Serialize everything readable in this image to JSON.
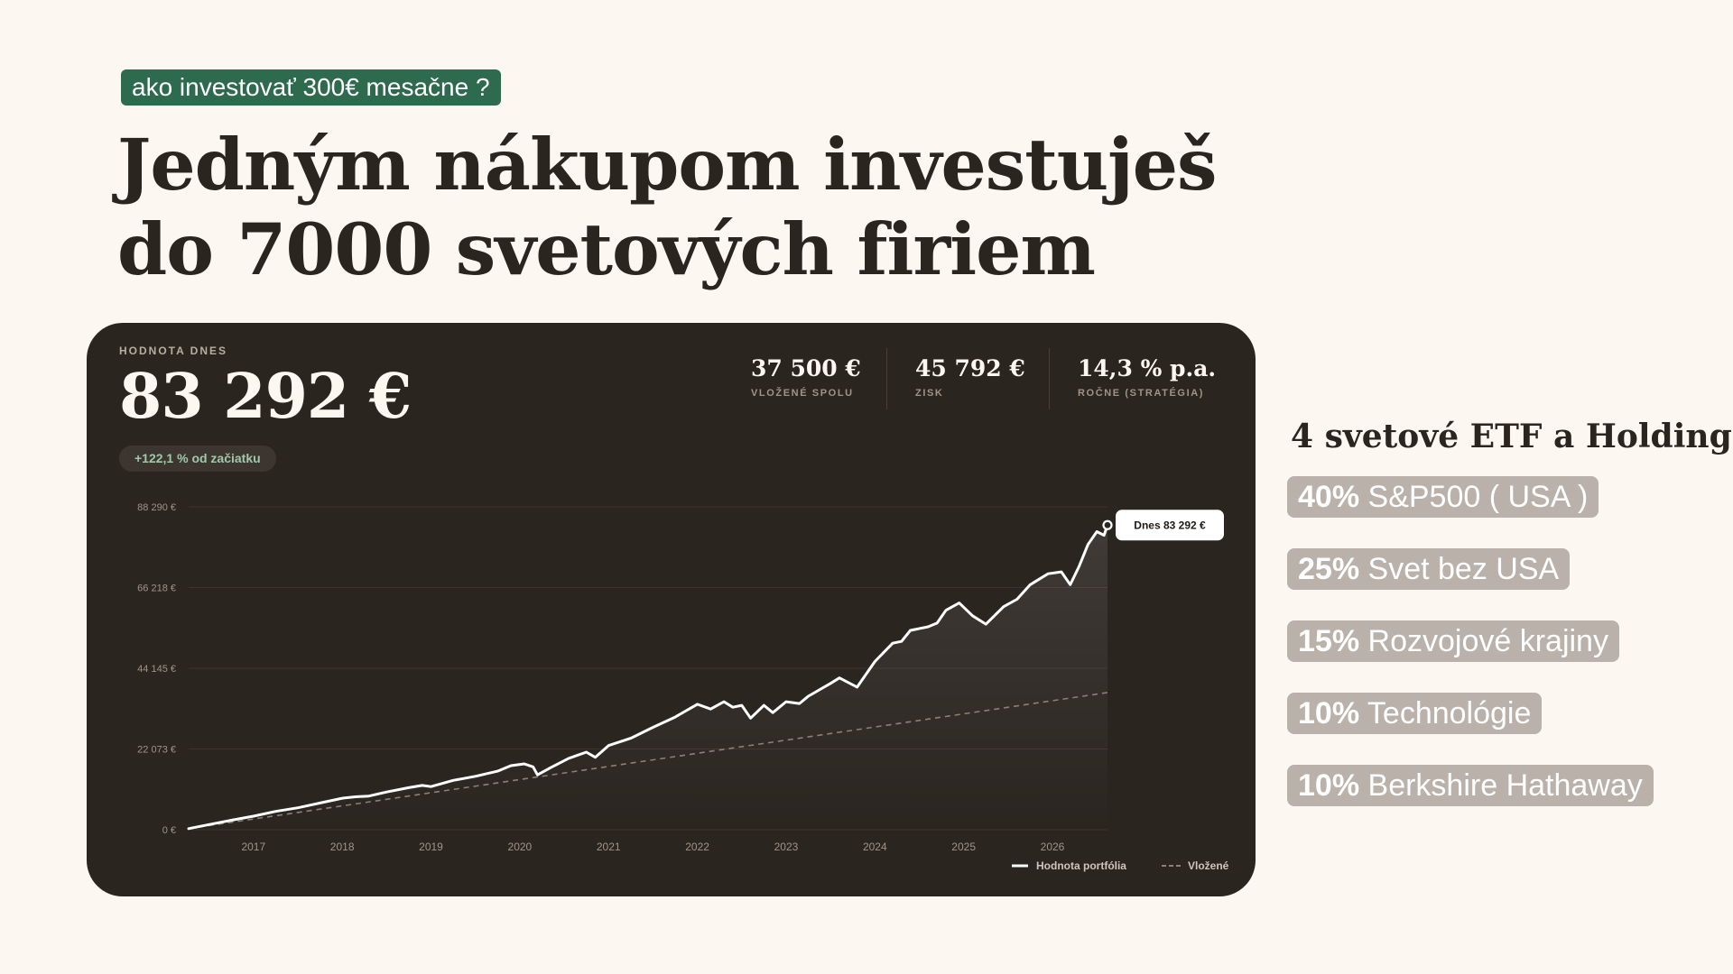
{
  "tag": "ako investovať 300€ mesačne ?",
  "headline": {
    "line1": "Jedným nákupom investuješ",
    "line2": "do 7000 svetových firiem"
  },
  "card": {
    "value_label": "HODNOTA DNES",
    "value": "83 292 €",
    "change": "+122,1 % od začiatku",
    "stats": [
      {
        "value": "37 500 €",
        "label": "VLOŽENÉ SPOLU"
      },
      {
        "value": "45 792 €",
        "label": "ZISK"
      },
      {
        "value": "14,3 % p.a.",
        "label": "ROČNE (STRATÉGIA)"
      }
    ]
  },
  "etf": {
    "title": "4 svetové ETF a Holding",
    "items": [
      {
        "pct": "40%",
        "name": "S&P500 ( USA )"
      },
      {
        "pct": "25%",
        "name": "Svet bez USA"
      },
      {
        "pct": "15%",
        "name": "Rozvojové krajiny"
      },
      {
        "pct": "10%",
        "name": "Technológie"
      },
      {
        "pct": "10%",
        "name": "Berkshire Hathaway"
      }
    ]
  },
  "colors": {
    "background": "#fcf8f1",
    "card": "#2b2520",
    "tag": "#2e6a4e",
    "positive": "#9fc9ab",
    "etf_pill": "#bab1ab"
  },
  "chart_data": {
    "type": "line",
    "y_ticks": [
      {
        "value": 0,
        "label": "0 €"
      },
      {
        "value": 22073,
        "label": "22 073 €"
      },
      {
        "value": 44145,
        "label": "44 145 €"
      },
      {
        "value": 66218,
        "label": "66 218 €"
      },
      {
        "value": 88290,
        "label": "88 290 €"
      }
    ],
    "x_ticks": [
      2017,
      2018,
      2019,
      2020,
      2021,
      2022,
      2023,
      2024,
      2025,
      2026
    ],
    "ylim": [
      0,
      88290
    ],
    "xlim": [
      2016.27,
      2026.62
    ],
    "grid": true,
    "legend_position": "bottom-right",
    "callout": "Dnes 83 292 €",
    "series": [
      {
        "name": "Hodnota portfólia",
        "style": "solid",
        "color": "#ffffff",
        "points": [
          [
            2016.27,
            300
          ],
          [
            2016.5,
            1400
          ],
          [
            2016.75,
            2600
          ],
          [
            2017.0,
            3700
          ],
          [
            2017.25,
            5000
          ],
          [
            2017.5,
            6000
          ],
          [
            2017.75,
            7300
          ],
          [
            2018.0,
            8600
          ],
          [
            2018.15,
            9000
          ],
          [
            2018.3,
            9200
          ],
          [
            2018.5,
            10300
          ],
          [
            2018.75,
            11500
          ],
          [
            2018.9,
            12100
          ],
          [
            2019.0,
            11800
          ],
          [
            2019.25,
            13500
          ],
          [
            2019.5,
            14600
          ],
          [
            2019.75,
            16000
          ],
          [
            2019.9,
            17500
          ],
          [
            2020.05,
            18000
          ],
          [
            2020.15,
            17200
          ],
          [
            2020.2,
            15000
          ],
          [
            2020.35,
            17000
          ],
          [
            2020.55,
            19500
          ],
          [
            2020.75,
            21200
          ],
          [
            2020.85,
            19800
          ],
          [
            2021.0,
            23000
          ],
          [
            2021.25,
            25000
          ],
          [
            2021.5,
            28000
          ],
          [
            2021.75,
            30800
          ],
          [
            2022.0,
            34300
          ],
          [
            2022.15,
            33000
          ],
          [
            2022.3,
            35000
          ],
          [
            2022.4,
            33500
          ],
          [
            2022.5,
            34000
          ],
          [
            2022.6,
            30500
          ],
          [
            2022.75,
            34000
          ],
          [
            2022.85,
            32000
          ],
          [
            2023.0,
            35000
          ],
          [
            2023.15,
            34500
          ],
          [
            2023.25,
            36500
          ],
          [
            2023.5,
            40000
          ],
          [
            2023.6,
            41500
          ],
          [
            2023.8,
            39000
          ],
          [
            2024.0,
            46000
          ],
          [
            2024.2,
            51000
          ],
          [
            2024.3,
            51500
          ],
          [
            2024.4,
            54500
          ],
          [
            2024.6,
            55500
          ],
          [
            2024.7,
            56500
          ],
          [
            2024.8,
            60000
          ],
          [
            2024.95,
            62000
          ],
          [
            2025.1,
            58500
          ],
          [
            2025.25,
            56200
          ],
          [
            2025.45,
            61000
          ],
          [
            2025.6,
            63000
          ],
          [
            2025.75,
            67000
          ],
          [
            2025.95,
            70000
          ],
          [
            2026.1,
            70500
          ],
          [
            2026.2,
            67000
          ],
          [
            2026.3,
            72000
          ],
          [
            2026.4,
            78000
          ],
          [
            2026.5,
            81500
          ],
          [
            2026.58,
            80500
          ],
          [
            2026.62,
            83292
          ]
        ]
      },
      {
        "name": "Vložené",
        "style": "dashed",
        "color": "#8a8078",
        "points": [
          [
            2016.27,
            300
          ],
          [
            2026.62,
            37500
          ]
        ]
      }
    ]
  }
}
